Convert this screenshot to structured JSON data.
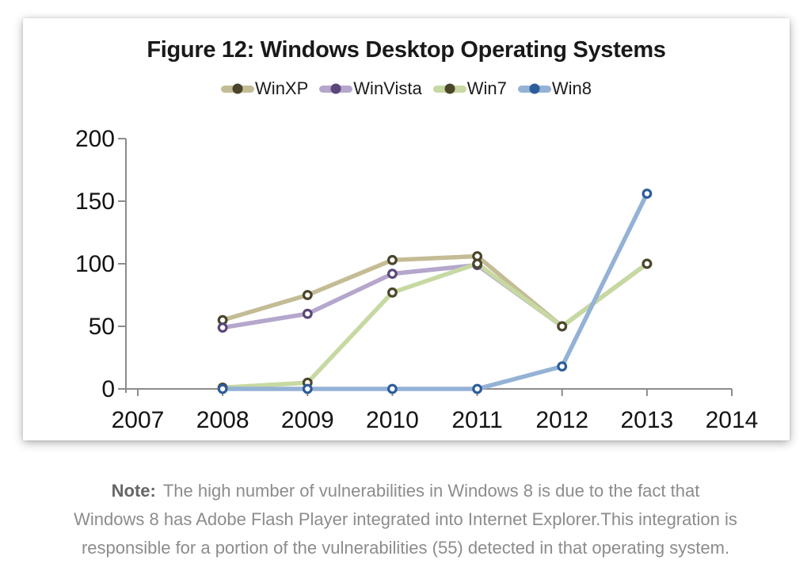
{
  "chart_data": {
    "type": "line",
    "title": "Figure 12: Windows Desktop Operating Systems",
    "x": [
      2008,
      2009,
      2010,
      2011,
      2012,
      2013
    ],
    "x_axis": {
      "min": 2007,
      "max": 2014,
      "ticks": [
        2007,
        2008,
        2009,
        2010,
        2011,
        2012,
        2013,
        2014
      ]
    },
    "y_axis": {
      "min": 0,
      "max": 200,
      "ticks": [
        0,
        50,
        100,
        150,
        200
      ]
    },
    "grid": false,
    "legend_position": "top",
    "axis_color": "#8c8c8c",
    "label_color": "#141414",
    "series": [
      {
        "name": "WinXP",
        "values": [
          55,
          75,
          103,
          106,
          50,
          100
        ],
        "line_color": "#c3bc95",
        "marker_color": "#4a452a"
      },
      {
        "name": "WinVista",
        "values": [
          49,
          60,
          92,
          99,
          50,
          100
        ],
        "line_color": "#b5a6cc",
        "marker_color": "#5b4778"
      },
      {
        "name": "Win7",
        "values": [
          1,
          5,
          77,
          100,
          50,
          100
        ],
        "line_color": "#c7d9a2",
        "marker_color": "#4b472b"
      },
      {
        "name": "Win8",
        "values": [
          0,
          0,
          0,
          0,
          18,
          156
        ],
        "line_color": "#94b2d6",
        "marker_color": "#2c5c99"
      }
    ]
  },
  "note": {
    "label": "Note:",
    "lines": [
      "The high number of vulnerabilities in Windows 8 is due to the fact that",
      "Windows 8 has Adobe Flash Player integrated into Internet Explorer.This integration is",
      "responsible for a portion of the vulnerabilities (55) detected in that operating system."
    ]
  }
}
